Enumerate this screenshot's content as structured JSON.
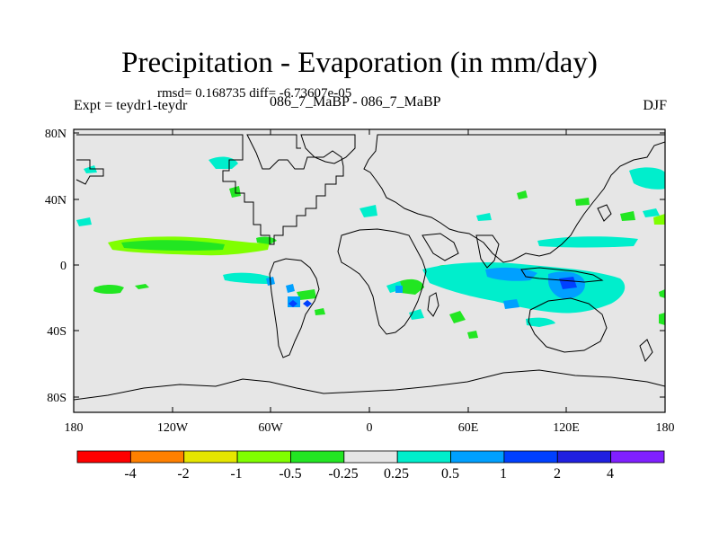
{
  "plot": {
    "title": "Precipitation - Evaporation (in mm/day)",
    "stats": "rmsd= 0.168735 diff= -6.73607e-05",
    "experiment": "Expt = teydr1-teydr",
    "cases": "086_7_MaBP - 086_7_MaBP",
    "season": "DJF"
  },
  "map": {
    "projection": "cylindrical equidistant",
    "lon_range": [
      -180,
      180
    ],
    "lat_range": [
      -90,
      90
    ],
    "background_color": "#e6e6e6",
    "x_ticks": [
      "180",
      "120W",
      "60W",
      "0",
      "60E",
      "120E",
      "180"
    ],
    "y_ticks": [
      "80N",
      "40N",
      "0",
      "40S",
      "80S"
    ]
  },
  "colorbar": {
    "colors": [
      "#ff0000",
      "#ff8000",
      "#e6e600",
      "#80ff00",
      "#22e622",
      "#e6e6e6",
      "#00eecc",
      "#00a0ff",
      "#0040ff",
      "#2020e0",
      "#8020ff"
    ],
    "labels": [
      "-4",
      "-2",
      "-1",
      "-0.5",
      "-0.25",
      "0.25",
      "0.5",
      "1",
      "2",
      "4"
    ]
  }
}
